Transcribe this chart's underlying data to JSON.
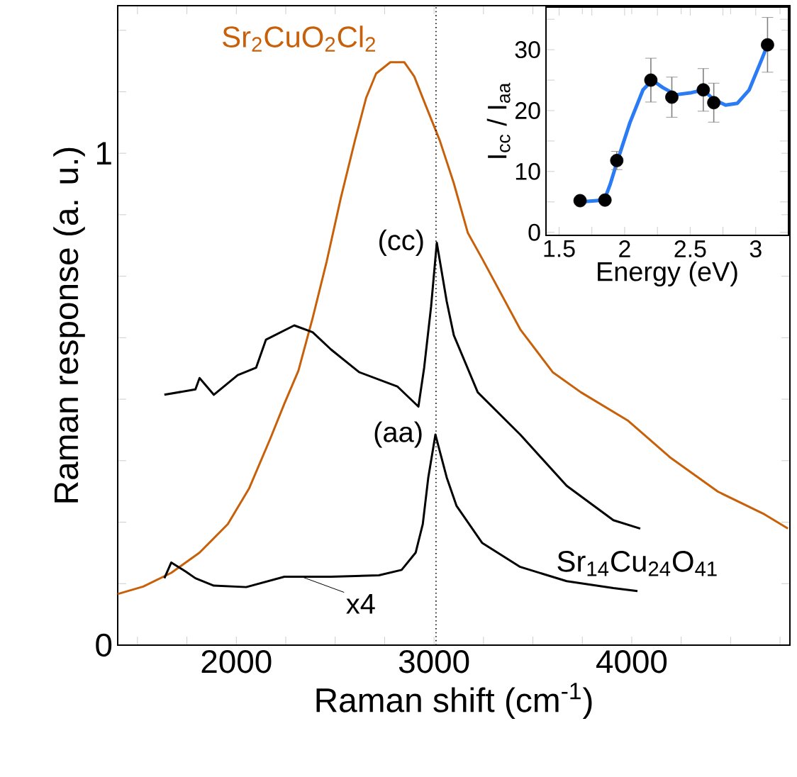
{
  "chart_data": [
    {
      "type": "line",
      "xlabel": "Raman shift (cm$^{-1}$)",
      "ylabel": "Raman response (a. u.)",
      "xlim": [
        1400,
        4800
      ],
      "ylim": [
        0,
        1.3
      ],
      "xticks": [
        {
          "value": 1500,
          "label": null
        },
        {
          "value": 1750,
          "label": null
        },
        2000,
        {
          "value": 2250,
          "label": null
        },
        {
          "value": 2500,
          "label": null
        },
        {
          "value": 2750,
          "label": null
        },
        3000,
        {
          "value": 3250,
          "label": null
        },
        {
          "value": 3500,
          "label": null
        },
        {
          "value": 3750,
          "label": null
        },
        4000,
        {
          "value": 4250,
          "label": null
        },
        {
          "value": 4500,
          "label": null
        },
        {
          "value": 4750,
          "label": null
        }
      ],
      "yticks": [
        0,
        {
          "value": 0.125,
          "label": null
        },
        {
          "value": 0.25,
          "label": null
        },
        {
          "value": 0.375,
          "label": null
        },
        {
          "value": 0.5,
          "label": null
        },
        {
          "value": 0.625,
          "label": null
        },
        {
          "value": 0.75,
          "label": null
        },
        {
          "value": 0.875,
          "label": null
        },
        1,
        {
          "value": 1.125,
          "label": null
        },
        {
          "value": 1.25,
          "label": null
        }
      ],
      "marker": "none",
      "line_style": "solid",
      "series": [
        {
          "name": "Sr$_{2}$CuO$_{2}$Cl$_{2}$",
          "color": "#c8600a",
          "x": [
            1400,
            1529,
            1671,
            1814,
            1957,
            2064,
            2171,
            2243,
            2314,
            2386,
            2457,
            2529,
            2600,
            2657,
            2707,
            2779,
            2850,
            2900,
            2957,
            3029,
            3100,
            3171,
            3243,
            3436,
            3600,
            3743,
            3979,
            4193,
            4436,
            4671,
            4790
          ],
          "values": [
            0.104,
            0.119,
            0.147,
            0.188,
            0.246,
            0.318,
            0.419,
            0.491,
            0.558,
            0.665,
            0.78,
            0.91,
            1.026,
            1.113,
            1.162,
            1.185,
            1.185,
            1.156,
            1.098,
            1.026,
            0.939,
            0.838,
            0.786,
            0.642,
            0.555,
            0.514,
            0.457,
            0.382,
            0.312,
            0.266,
            0.237
          ]
        },
        {
          "name": "(cc)",
          "color": "#000000",
          "x": [
            1636,
            1793,
            1814,
            1886,
            2007,
            2100,
            2150,
            2293,
            2386,
            2479,
            2621,
            2814,
            2921,
            2950,
            2985,
            3014,
            3064,
            3100,
            3221,
            3436,
            3671,
            3907,
            4043
          ],
          "values": [
            0.509,
            0.52,
            0.543,
            0.509,
            0.549,
            0.564,
            0.621,
            0.65,
            0.636,
            0.601,
            0.555,
            0.526,
            0.485,
            0.564,
            0.688,
            0.818,
            0.699,
            0.63,
            0.514,
            0.428,
            0.324,
            0.254,
            0.237
          ]
        },
        {
          "name": "(aa)",
          "color": "#000000",
          "x": [
            1636,
            1671,
            1743,
            1793,
            1886,
            2050,
            2243,
            2479,
            2721,
            2836,
            2907,
            2943,
            2971,
            3007,
            3064,
            3114,
            3243,
            3436,
            3671,
            3907,
            4029
          ],
          "values": [
            0.136,
            0.168,
            0.15,
            0.136,
            0.121,
            0.118,
            0.139,
            0.139,
            0.142,
            0.153,
            0.188,
            0.246,
            0.341,
            0.428,
            0.341,
            0.283,
            0.208,
            0.159,
            0.13,
            0.116,
            0.11
          ]
        }
      ],
      "annotations": [
        "Sr$_{14}$Cu$_{24}$O$_{41}$",
        {
          "text": "x4",
          "x": 2330,
          "y": 0.139
        }
      ],
      "ref_lines": [
        {
          "axis": "x",
          "value": 3010,
          "line_style": "dotted",
          "color": "#000000"
        }
      ]
    },
    {
      "type": "scatter",
      "xlabel": "Energy (eV)",
      "ylabel": "I$_{cc}$ / I$_{aa}$",
      "xlim": [
        1.4,
        3.25
      ],
      "ylim": [
        -0.5,
        37
      ],
      "xticks": [
        1.5,
        {
          "value": 1.75,
          "label": null
        },
        2,
        {
          "value": 2.25,
          "label": null
        },
        2.5,
        {
          "value": 2.75,
          "label": null
        },
        3
      ],
      "yticks": [
        0,
        {
          "value": 5,
          "label": null
        },
        10,
        {
          "value": 15,
          "label": null
        },
        20,
        {
          "value": 25,
          "label": null
        },
        30,
        {
          "value": 35,
          "label": null
        }
      ],
      "series": [
        {
          "type": "line",
          "marker": "none",
          "color": "#2b7bf5",
          "x": [
            1.66,
            1.79,
            1.85,
            1.89,
            1.94,
            2.04,
            2.14,
            2.21,
            2.29,
            2.39,
            2.5,
            2.6,
            2.68,
            2.77,
            2.86,
            2.95,
            3.04,
            3.09
          ],
          "values": [
            5.0,
            5.2,
            5.6,
            7.9,
            11.4,
            18.0,
            23.4,
            25.0,
            23.8,
            22.6,
            22.9,
            23.4,
            21.8,
            20.9,
            21.2,
            23.4,
            28.1,
            30.8
          ]
        },
        {
          "type": "scatter",
          "marker": "circle",
          "color": "#000000",
          "x": [
            1.66,
            1.85,
            1.94,
            2.2,
            2.36,
            2.6,
            2.68,
            3.09
          ],
          "values": [
            5.2,
            5.3,
            11.8,
            25.0,
            22.2,
            23.4,
            21.3,
            30.8
          ],
          "errors": [
            null,
            null,
            1.5,
            3.6,
            3.3,
            3.5,
            3.2,
            4.5
          ]
        }
      ]
    }
  ]
}
